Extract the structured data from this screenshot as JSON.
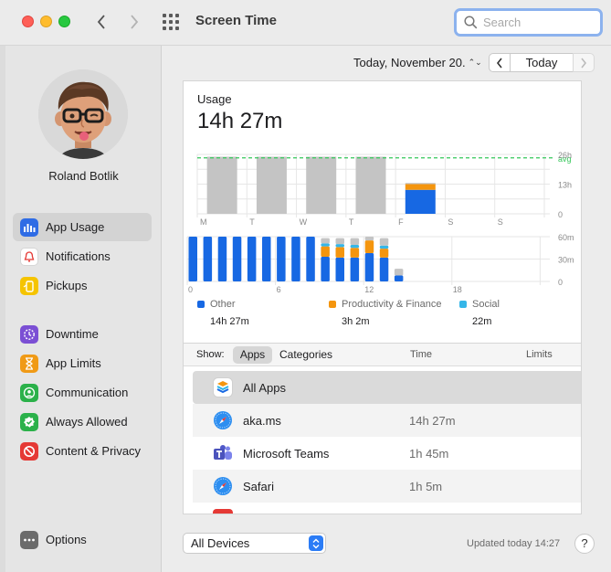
{
  "window": {
    "title": "Screen Time"
  },
  "search": {
    "placeholder": "Search"
  },
  "user": {
    "name": "Roland Botlik"
  },
  "sidebar": {
    "items": [
      {
        "label": "App Usage",
        "icon": "app-usage-icon",
        "color": "#2f6ce5",
        "active": true
      },
      {
        "label": "Notifications",
        "icon": "notifications-icon",
        "color": "#ffffff"
      },
      {
        "label": "Pickups",
        "icon": "pickups-icon",
        "color": "#f5c400"
      },
      {
        "label": "Downtime",
        "icon": "downtime-icon",
        "color": "#7b4fd4"
      },
      {
        "label": "App Limits",
        "icon": "hourglass-icon",
        "color": "#f09a16"
      },
      {
        "label": "Communication",
        "icon": "communication-icon",
        "color": "#2bb14a"
      },
      {
        "label": "Always Allowed",
        "icon": "always-allowed-icon",
        "color": "#2bb14a"
      },
      {
        "label": "Content & Privacy",
        "icon": "content-privacy-icon",
        "color": "#e53935"
      }
    ],
    "options_label": "Options"
  },
  "date": {
    "label": "Today, November 20.",
    "today_button": "Today"
  },
  "usage": {
    "label": "Usage",
    "total": "14h 27m"
  },
  "chart_data": [
    {
      "type": "bar",
      "title": "Weekly usage",
      "categories": [
        "M",
        "T",
        "W",
        "T",
        "F",
        "S",
        "S"
      ],
      "ytick_labels": [
        "26h",
        "13h",
        "0"
      ],
      "avg_label": "avg",
      "ylim": [
        0,
        26
      ],
      "avg": 24.5,
      "series": [
        {
          "values": [
            25,
            25,
            25,
            25,
            0,
            0,
            0
          ],
          "color": "#c4c4c4"
        },
        {
          "values": [
            0,
            0,
            0,
            0,
            10.5,
            0,
            0
          ],
          "color": "#1768e3"
        },
        {
          "values": [
            0,
            0,
            0,
            0,
            2.5,
            0,
            0
          ],
          "color": "#f4950e"
        },
        {
          "values": [
            0,
            0,
            0,
            0,
            0.5,
            0,
            0
          ],
          "color": "#c4c4c4"
        }
      ]
    },
    {
      "type": "bar",
      "title": "Hourly usage",
      "xtick_labels": [
        "0",
        "6",
        "12",
        "18"
      ],
      "ytick_labels": [
        "60m",
        "30m",
        "0"
      ],
      "ylim": [
        0,
        60
      ],
      "hours": [
        0,
        1,
        2,
        3,
        4,
        5,
        6,
        7,
        8,
        9,
        10,
        11,
        12,
        13,
        14
      ],
      "series": [
        {
          "name": "Other",
          "color": "#1768e3",
          "values": [
            60,
            60,
            60,
            60,
            60,
            60,
            60,
            60,
            60,
            33,
            32,
            32,
            38,
            32,
            8
          ]
        },
        {
          "name": "Productivity & Finance",
          "color": "#f4950e",
          "values": [
            0,
            0,
            0,
            0,
            0,
            0,
            0,
            0,
            0,
            14,
            14,
            13,
            17,
            12,
            0
          ]
        },
        {
          "name": "Social",
          "color": "#35b6e8",
          "values": [
            0,
            0,
            0,
            0,
            0,
            0,
            0,
            0,
            0,
            4,
            4,
            4,
            0,
            4,
            0
          ]
        },
        {
          "color": "#c4c4c4",
          "values": [
            0,
            0,
            0,
            0,
            0,
            0,
            0,
            0,
            0,
            7,
            8,
            9,
            5,
            10,
            9
          ]
        }
      ]
    }
  ],
  "legend": [
    {
      "name": "Other",
      "value": "14h 27m",
      "color": "#1768e3"
    },
    {
      "name": "Productivity & Finance",
      "value": "3h 2m",
      "color": "#f4950e"
    },
    {
      "name": "Social",
      "value": "22m",
      "color": "#35b6e8"
    }
  ],
  "table": {
    "show_label": "Show:",
    "tab_apps": "Apps",
    "tab_categories": "Categories",
    "col_time": "Time",
    "col_limits": "Limits",
    "rows": [
      {
        "name": "All Apps",
        "time": "",
        "icon": "all-apps-icon"
      },
      {
        "name": "aka.ms",
        "time": "14h 27m",
        "icon": "safari-icon"
      },
      {
        "name": "Microsoft Teams",
        "time": "1h 45m",
        "icon": "teams-icon"
      },
      {
        "name": "Safari",
        "time": "1h 5m",
        "icon": "safari-icon"
      }
    ]
  },
  "footer": {
    "devices": "All Devices",
    "updated": "Updated today 14:27",
    "help": "?"
  }
}
